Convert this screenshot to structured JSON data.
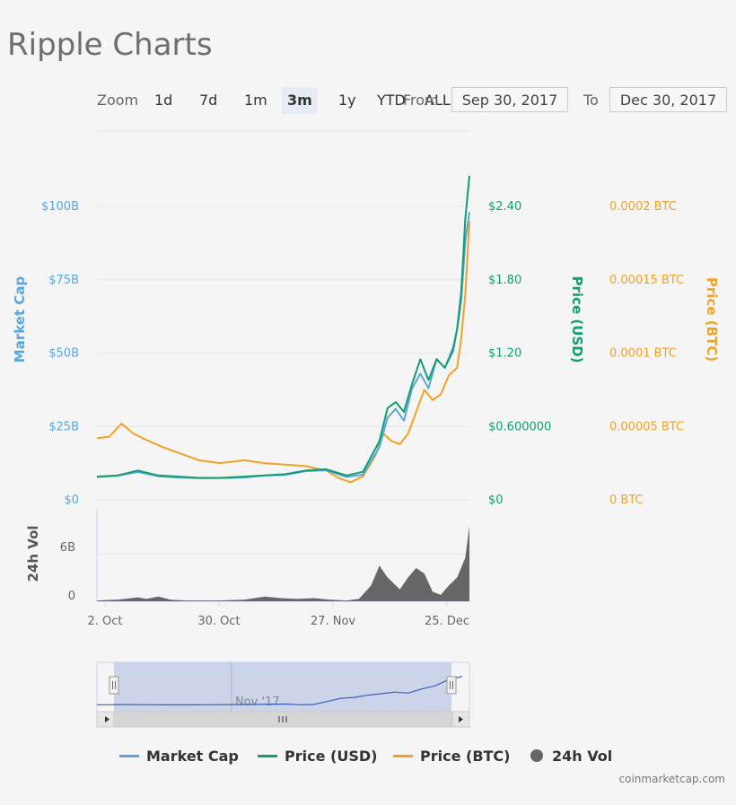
{
  "title": "Ripple Charts",
  "zoom": {
    "label": "Zoom",
    "buttons": [
      "1d",
      "7d",
      "1m",
      "3m",
      "1y",
      "YTD",
      "ALL"
    ],
    "active": "3m"
  },
  "range": {
    "from_label": "From",
    "from_value": "Sep 30, 2017",
    "to_label": "To",
    "to_value": "Dec 30, 2017"
  },
  "colors": {
    "market_cap": "#5ba6d9",
    "price_usd": "#119d74",
    "price_btc": "#f0a228",
    "volume": "#666666",
    "navigator_fill": "#c6d0e8",
    "navigator_line": "#3c5fb5"
  },
  "chart_data": {
    "type": "line",
    "x_axis": {
      "ticks": [
        "2. Oct",
        "30. Oct",
        "27. Nov",
        "25. Dec"
      ],
      "range": [
        "2017-09-30",
        "2017-12-30"
      ]
    },
    "axes": {
      "market_cap": {
        "title": "Market Cap",
        "ticks": [
          "$0",
          "$25B",
          "$50B",
          "$75B",
          "$100B"
        ],
        "ylim": [
          0,
          100
        ]
      },
      "price_usd": {
        "title": "Price (USD)",
        "ticks": [
          "$0",
          "$0.600000",
          "$1.20",
          "$1.80",
          "$2.40"
        ],
        "ylim": [
          0,
          2.4
        ]
      },
      "price_btc": {
        "title": "Price (BTC)",
        "ticks": [
          "0 BTC",
          "0.00005 BTC",
          "0.0001 BTC",
          "0.00015 BTC",
          "0.0002 BTC"
        ],
        "ylim": [
          0,
          0.0002
        ]
      },
      "volume": {
        "title": "24h Vol",
        "ticks": [
          "0",
          "6B"
        ],
        "ylim": [
          0,
          6
        ]
      }
    },
    "series": [
      {
        "name": "Market Cap",
        "axis": "market_cap",
        "x": [
          "2017-09-30",
          "2017-10-05",
          "2017-10-10",
          "2017-10-15",
          "2017-10-20",
          "2017-10-25",
          "2017-10-30",
          "2017-11-05",
          "2017-11-10",
          "2017-11-15",
          "2017-11-20",
          "2017-11-25",
          "2017-11-30",
          "2017-12-04",
          "2017-12-08",
          "2017-12-10",
          "2017-12-12",
          "2017-12-14",
          "2017-12-16",
          "2017-12-18",
          "2017-12-20",
          "2017-12-22",
          "2017-12-24",
          "2017-12-26",
          "2017-12-27",
          "2017-12-28",
          "2017-12-29",
          "2017-12-30"
        ],
        "values": [
          7.8,
          8.2,
          9.5,
          8.0,
          7.6,
          7.4,
          7.4,
          7.6,
          8.3,
          8.5,
          9.8,
          10.1,
          7.8,
          8.6,
          18,
          28,
          31,
          27,
          38,
          43,
          38,
          48,
          45,
          52,
          58,
          68,
          88,
          98
        ]
      },
      {
        "name": "Price (USD)",
        "axis": "price_usd",
        "x": [
          "2017-09-30",
          "2017-10-05",
          "2017-10-10",
          "2017-10-15",
          "2017-10-20",
          "2017-10-25",
          "2017-10-30",
          "2017-11-05",
          "2017-11-10",
          "2017-11-15",
          "2017-11-20",
          "2017-11-25",
          "2017-11-30",
          "2017-12-04",
          "2017-12-08",
          "2017-12-10",
          "2017-12-12",
          "2017-12-14",
          "2017-12-16",
          "2017-12-18",
          "2017-12-20",
          "2017-12-22",
          "2017-12-24",
          "2017-12-26",
          "2017-12-27",
          "2017-12-28",
          "2017-12-29",
          "2017-12-30"
        ],
        "values": [
          0.19,
          0.2,
          0.24,
          0.2,
          0.19,
          0.18,
          0.18,
          0.19,
          0.2,
          0.21,
          0.24,
          0.25,
          0.2,
          0.23,
          0.48,
          0.75,
          0.8,
          0.72,
          0.95,
          1.15,
          0.98,
          1.15,
          1.08,
          1.22,
          1.4,
          1.7,
          2.3,
          2.65
        ]
      },
      {
        "name": "Price (BTC)",
        "axis": "price_btc",
        "x": [
          "2017-09-30",
          "2017-10-03",
          "2017-10-06",
          "2017-10-09",
          "2017-10-12",
          "2017-10-16",
          "2017-10-20",
          "2017-10-25",
          "2017-10-30",
          "2017-11-05",
          "2017-11-10",
          "2017-11-15",
          "2017-11-20",
          "2017-11-25",
          "2017-11-28",
          "2017-12-01",
          "2017-12-04",
          "2017-12-07",
          "2017-12-09",
          "2017-12-11",
          "2017-12-13",
          "2017-12-15",
          "2017-12-17",
          "2017-12-19",
          "2017-12-21",
          "2017-12-23",
          "2017-12-25",
          "2017-12-27",
          "2017-12-28",
          "2017-12-29",
          "2017-12-30"
        ],
        "values": [
          4.2e-05,
          4.3e-05,
          5.2e-05,
          4.5e-05,
          4.1e-05,
          3.6e-05,
          3.2e-05,
          2.7e-05,
          2.5e-05,
          2.7e-05,
          2.5e-05,
          2.4e-05,
          2.3e-05,
          2e-05,
          1.5e-05,
          1.2e-05,
          1.6e-05,
          3e-05,
          4.5e-05,
          4e-05,
          3.8e-05,
          4.5e-05,
          6e-05,
          7.5e-05,
          6.8e-05,
          7.2e-05,
          8.5e-05,
          9e-05,
          0.00011,
          0.00014,
          0.00019
        ]
      },
      {
        "name": "24h Vol",
        "axis": "volume",
        "type": "area",
        "x": [
          "2017-09-30",
          "2017-10-05",
          "2017-10-10",
          "2017-10-12",
          "2017-10-15",
          "2017-10-18",
          "2017-10-22",
          "2017-10-26",
          "2017-10-30",
          "2017-11-05",
          "2017-11-10",
          "2017-11-14",
          "2017-11-18",
          "2017-11-22",
          "2017-11-26",
          "2017-11-30",
          "2017-12-03",
          "2017-12-06",
          "2017-12-08",
          "2017-12-10",
          "2017-12-12",
          "2017-12-13",
          "2017-12-15",
          "2017-12-17",
          "2017-12-19",
          "2017-12-21",
          "2017-12-23",
          "2017-12-25",
          "2017-12-27",
          "2017-12-29",
          "2017-12-30"
        ],
        "values": [
          0.1,
          0.2,
          0.5,
          0.3,
          0.6,
          0.2,
          0.1,
          0.1,
          0.1,
          0.2,
          0.6,
          0.4,
          0.3,
          0.4,
          0.2,
          0.1,
          0.3,
          2.0,
          4.5,
          3.0,
          2.0,
          1.5,
          3.0,
          4.2,
          3.5,
          1.2,
          0.8,
          2.0,
          3.0,
          5.5,
          9.5
        ]
      }
    ],
    "navigator": {
      "label": "Nov '17",
      "values": [
        7.8,
        7.8,
        8.2,
        8.0,
        7.6,
        7.4,
        7.4,
        7.5,
        7.6,
        8.0,
        8.3,
        8.5,
        9.0,
        9.8,
        10.0,
        7.8,
        8.6,
        18,
        28,
        31,
        38,
        43,
        48,
        45,
        58,
        68,
        88,
        98
      ]
    }
  },
  "legend": [
    {
      "label": "Market Cap",
      "color": "#5ba6d9",
      "shape": "line"
    },
    {
      "label": "Price (USD)",
      "color": "#119d74",
      "shape": "line"
    },
    {
      "label": "Price (BTC)",
      "color": "#f0a228",
      "shape": "line"
    },
    {
      "label": "24h Vol",
      "color": "#666666",
      "shape": "dot"
    }
  ],
  "credits": "coinmarketcap.com"
}
